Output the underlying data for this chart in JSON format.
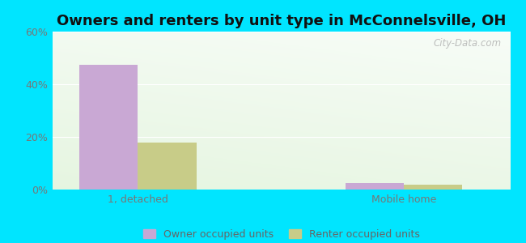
{
  "title": "Owners and renters by unit type in McConnelsville, OH",
  "title_fontsize": 13,
  "title_fontweight": "bold",
  "categories": [
    "1, detached",
    "Mobile home"
  ],
  "owner_values": [
    47.5,
    2.5
  ],
  "renter_values": [
    18.0,
    1.8
  ],
  "owner_color": "#c9a8d4",
  "renter_color": "#c8cc88",
  "ylim": [
    0,
    60
  ],
  "yticks": [
    0,
    20,
    40,
    60
  ],
  "ytick_labels": [
    "0%",
    "20%",
    "40%",
    "60%"
  ],
  "background_color": "#00e5ff",
  "grid_color": "#ffffff",
  "watermark": "City-Data.com",
  "legend_labels": [
    "Owner occupied units",
    "Renter occupied units"
  ],
  "bar_width": 0.55,
  "group_positions": [
    1.0,
    3.5
  ]
}
